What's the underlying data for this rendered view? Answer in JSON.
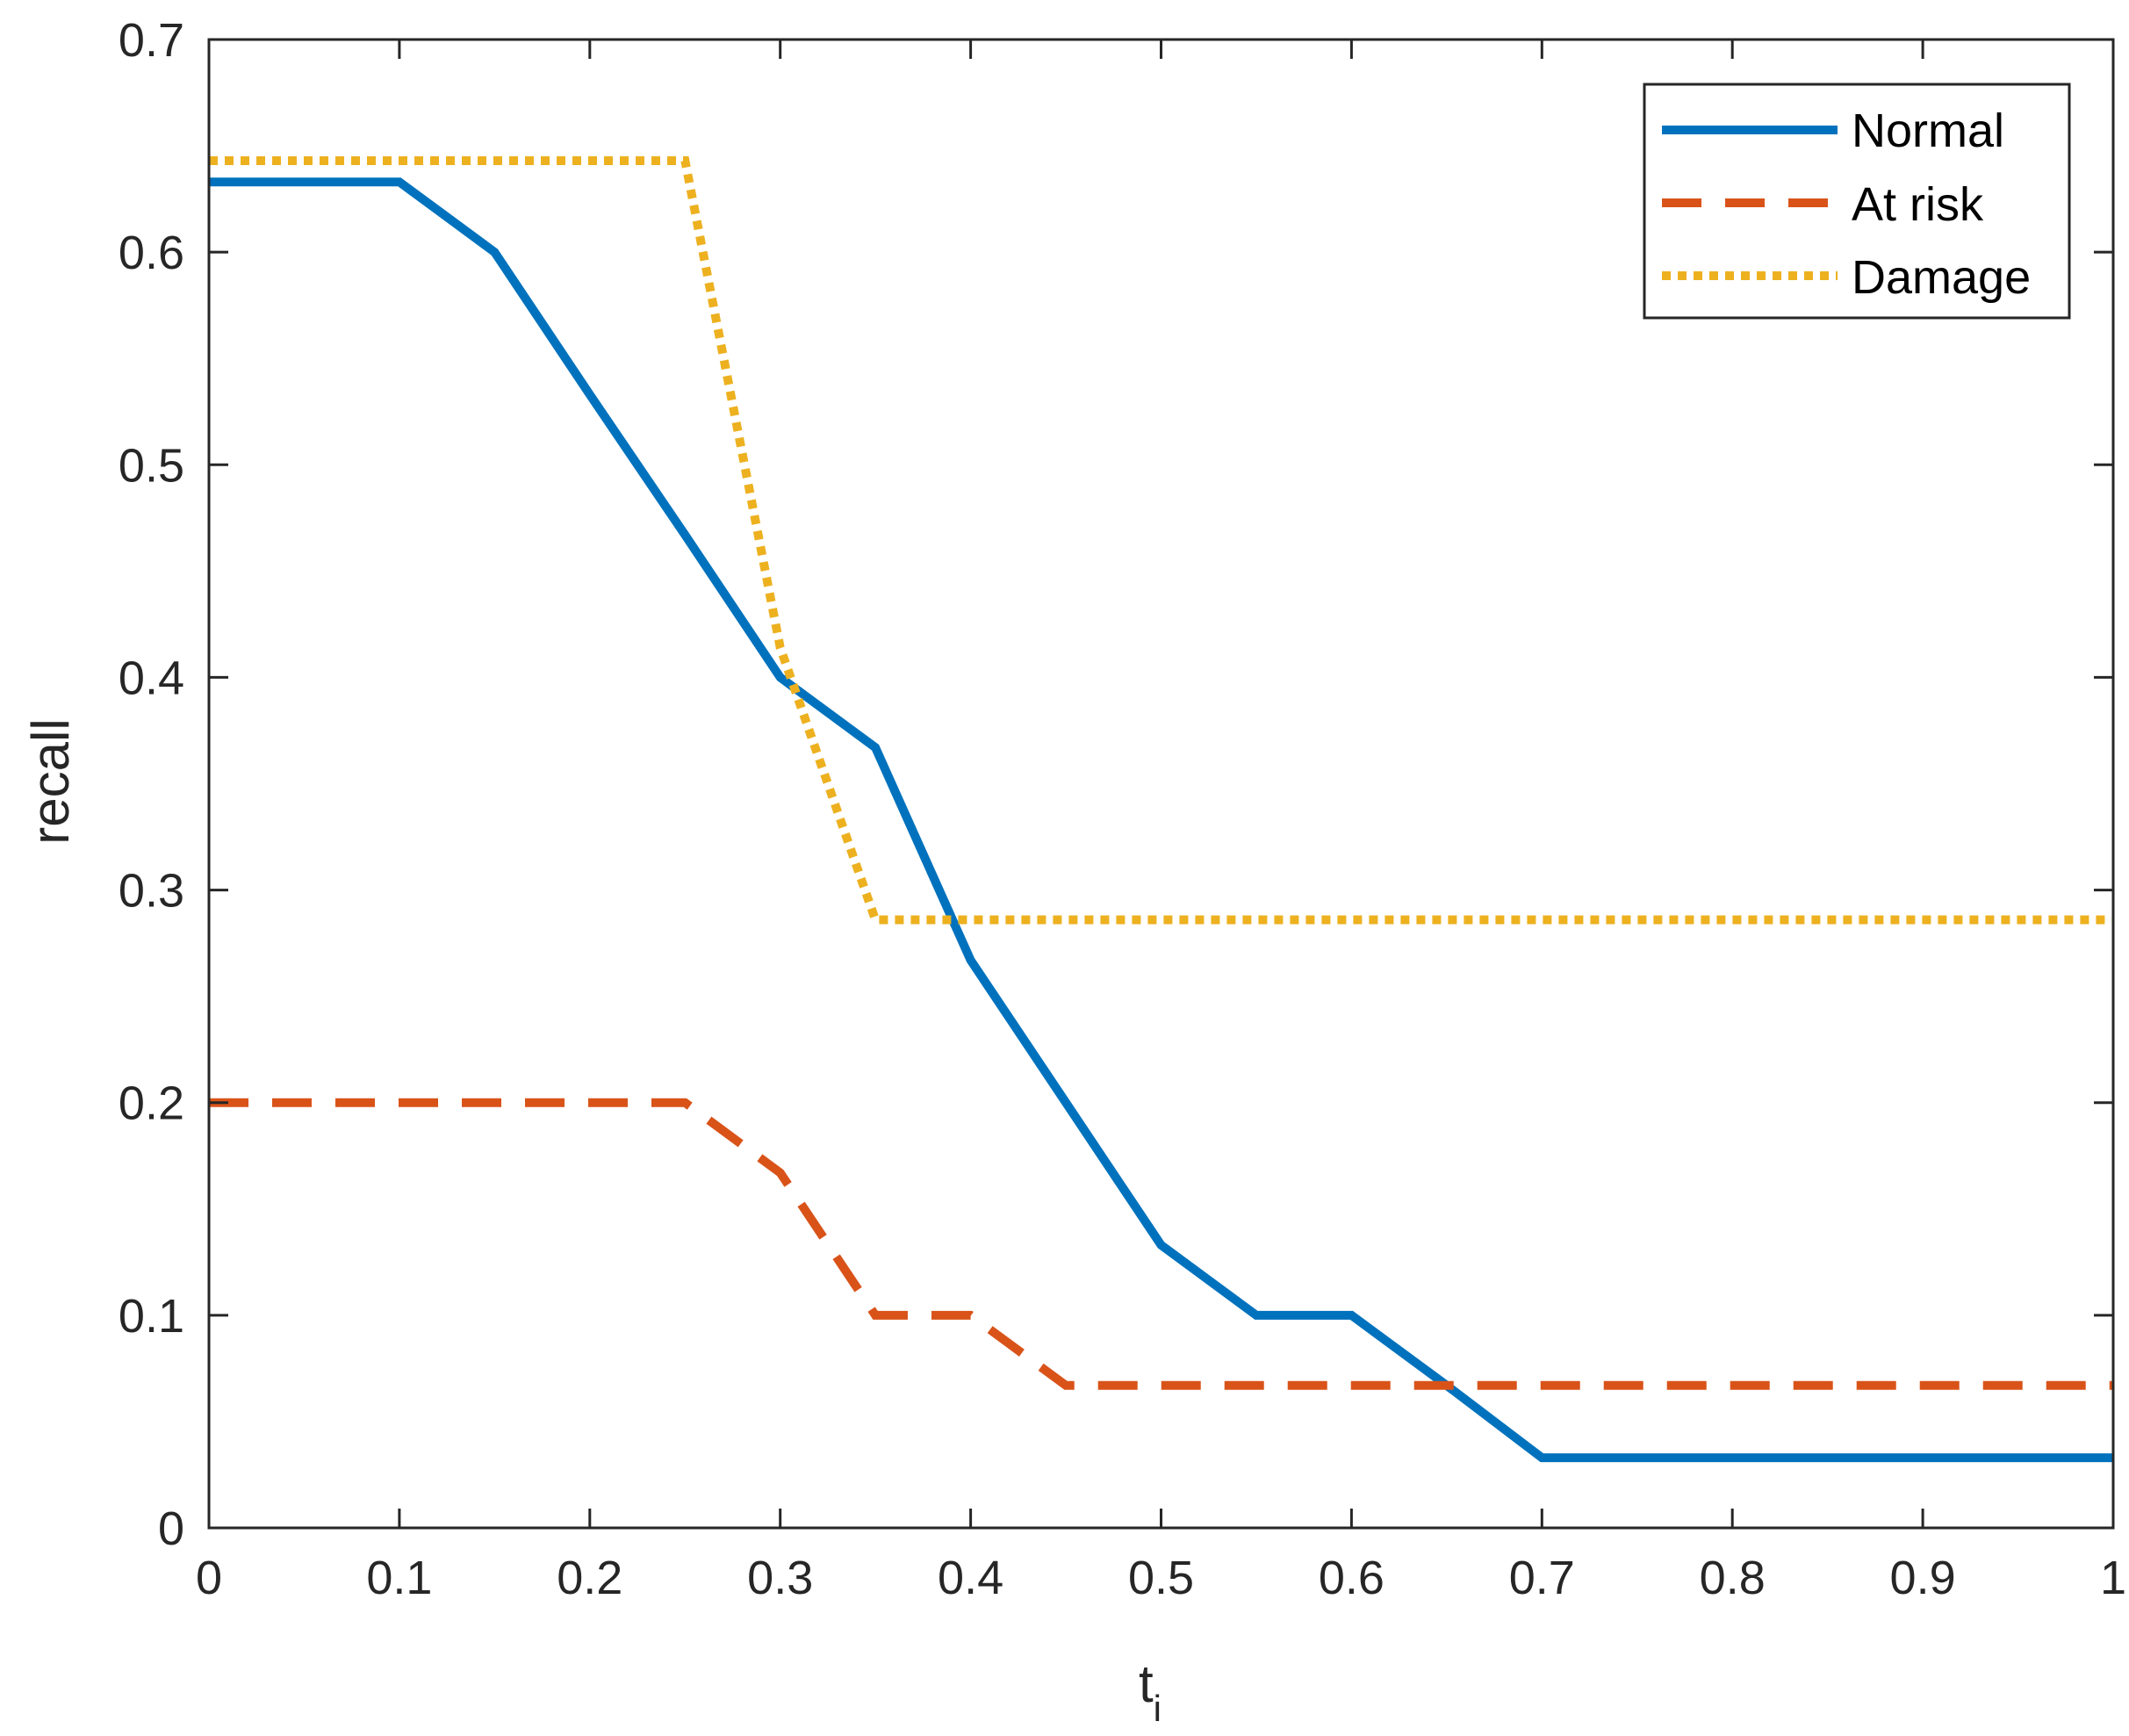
{
  "chart_data": {
    "type": "line",
    "title": "",
    "xlabel": "t",
    "xlabel_sub": "i",
    "ylabel": "recall",
    "xlim": [
      0,
      1
    ],
    "ylim": [
      0,
      0.7
    ],
    "xticks": [
      0,
      0.1,
      0.2,
      0.3,
      0.4,
      0.5,
      0.6,
      0.7,
      0.8,
      0.9,
      1
    ],
    "xtick_labels": [
      "0",
      "0.1",
      "0.2",
      "0.3",
      "0.4",
      "0.5",
      "0.6",
      "0.7",
      "0.8",
      "0.9",
      "1"
    ],
    "yticks": [
      0,
      0.1,
      0.2,
      0.3,
      0.4,
      0.5,
      0.6,
      0.7
    ],
    "ytick_labels": [
      "0",
      "0.1",
      "0.2",
      "0.3",
      "0.4",
      "0.5",
      "0.6",
      "0.7"
    ],
    "grid": false,
    "legend_position": "top-right",
    "series": [
      {
        "name": "Normal",
        "color": "#0072BD",
        "style": "solid",
        "x": [
          0,
          0.05,
          0.1,
          0.15,
          0.2,
          0.25,
          0.3,
          0.35,
          0.4,
          0.45,
          0.5,
          0.55,
          0.6,
          0.65,
          0.7,
          0.75,
          0.8,
          0.85,
          0.9,
          0.95,
          1
        ],
        "y": [
          0.633,
          0.633,
          0.633,
          0.6,
          0.533,
          0.467,
          0.4,
          0.367,
          0.267,
          0.2,
          0.133,
          0.1,
          0.1,
          0.067,
          0.033,
          0.033,
          0.033,
          0.033,
          0.033,
          0.033,
          0.033
        ]
      },
      {
        "name": "At risk",
        "color": "#D95319",
        "style": "dashed",
        "x": [
          0,
          0.05,
          0.1,
          0.15,
          0.2,
          0.25,
          0.3,
          0.35,
          0.4,
          0.45,
          0.5,
          0.55,
          0.6,
          0.65,
          0.7,
          0.75,
          0.8,
          0.85,
          0.9,
          0.95,
          1
        ],
        "y": [
          0.2,
          0.2,
          0.2,
          0.2,
          0.2,
          0.2,
          0.167,
          0.1,
          0.1,
          0.067,
          0.067,
          0.067,
          0.067,
          0.067,
          0.067,
          0.067,
          0.067,
          0.067,
          0.067,
          0.067,
          0.067
        ]
      },
      {
        "name": "Damage",
        "color": "#EDB120",
        "style": "dotted",
        "x": [
          0,
          0.05,
          0.1,
          0.15,
          0.2,
          0.25,
          0.3,
          0.35,
          0.4,
          0.45,
          0.5,
          0.55,
          0.6,
          0.65,
          0.7,
          0.75,
          0.8,
          0.85,
          0.9,
          0.95,
          1
        ],
        "y": [
          0.643,
          0.643,
          0.643,
          0.643,
          0.643,
          0.643,
          0.414,
          0.286,
          0.286,
          0.286,
          0.286,
          0.286,
          0.286,
          0.286,
          0.286,
          0.286,
          0.286,
          0.286,
          0.286,
          0.286,
          0.286
        ]
      }
    ]
  }
}
